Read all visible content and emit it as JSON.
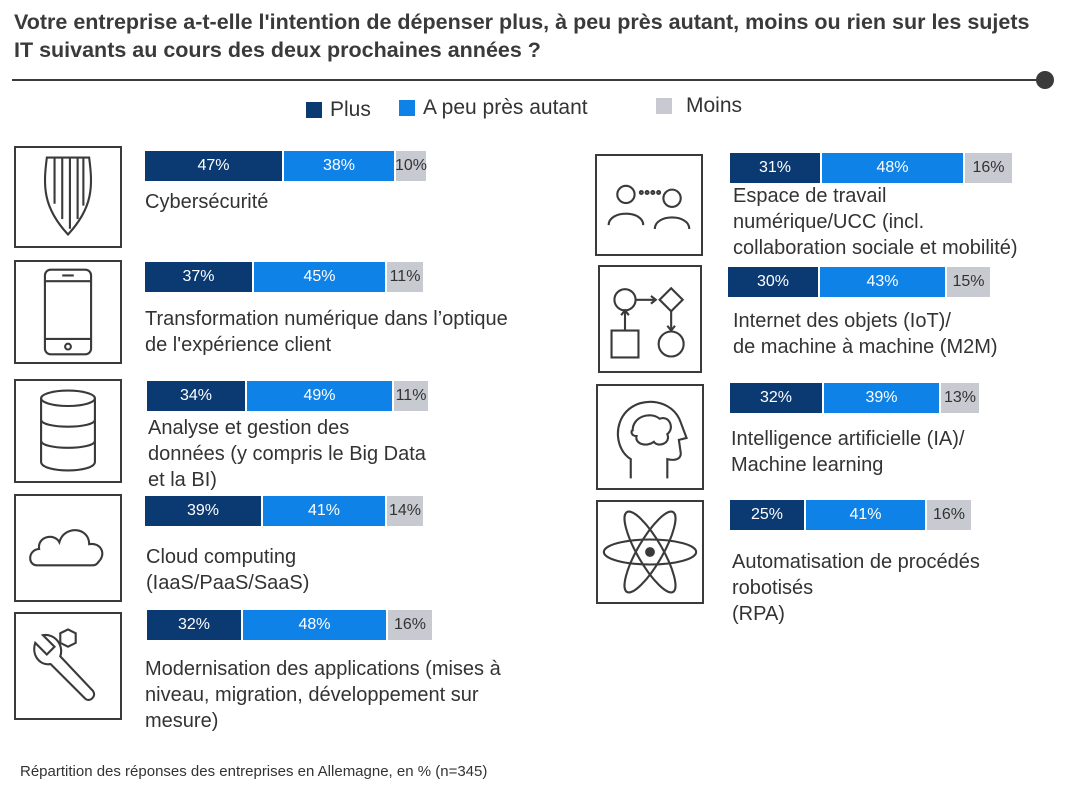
{
  "title": "Votre entreprise a-t-elle l'intention de dépenser plus, à peu près autant, moins ou rien sur les sujets IT suivants au cours des deux prochaines années ?",
  "footer": "Répartition des réponses des entreprises en Allemagne, en % (n=345)",
  "colors": {
    "plus": "#0b3a73",
    "autant": "#0f82e8",
    "moins": "#c7cbd1",
    "line": "#3a3a3a"
  },
  "legend": [
    {
      "label": "Plus",
      "color": "#0b3a73"
    },
    {
      "label": "A peu près autant",
      "color": "#0f82e8"
    },
    {
      "label": "Moins",
      "color": "#c7cbd1"
    }
  ],
  "chart_data": {
    "type": "bar",
    "orientation": "horizontal-stacked",
    "unit": "%",
    "series_names": [
      "Plus",
      "A peu près autant",
      "Moins"
    ],
    "items": [
      {
        "label": "Cybersécurité",
        "icon": "shield-icon",
        "values": [
          47,
          38,
          10
        ],
        "texts": [
          "47%",
          "38%",
          "10%"
        ]
      },
      {
        "label": "Transformation numérique dans l’optique\nde l'expérience client",
        "icon": "smartphone-icon",
        "values": [
          37,
          45,
          11
        ],
        "texts": [
          "37%",
          "45%",
          "11%"
        ]
      },
      {
        "label": "Analyse et gestion des\ndonnées (y compris le Big Data\net la BI)",
        "icon": "database-icon",
        "values": [
          34,
          49,
          11
        ],
        "texts": [
          "34%",
          "49%",
          "11%"
        ]
      },
      {
        "label": "Cloud computing\n(IaaS/PaaS/SaaS)",
        "icon": "cloud-icon",
        "values": [
          39,
          41,
          14
        ],
        "texts": [
          "39%",
          "41%",
          "14%"
        ]
      },
      {
        "label": "Modernisation des applications (mises à\nniveau, migration, développement sur\nmesure)",
        "icon": "wrench-icon",
        "values": [
          32,
          48,
          16
        ],
        "texts": [
          "32%",
          "48%",
          "16%"
        ]
      },
      {
        "label": "Espace de travail\nnumérique/UCC (incl.\ncollaboration sociale et mobilité)",
        "icon": "collaboration-icon",
        "values": [
          31,
          48,
          16
        ],
        "texts": [
          "31%",
          "48%",
          "16%"
        ]
      },
      {
        "label": "Internet des objets (IoT)/\nde machine à machine (M2M)",
        "icon": "flowchart-icon",
        "values": [
          30,
          43,
          15
        ],
        "texts": [
          "30%",
          "43%",
          "15%"
        ]
      },
      {
        "label": "Intelligence artificielle (IA)/\nMachine learning",
        "icon": "brain-head-icon",
        "values": [
          32,
          39,
          13
        ],
        "texts": [
          "32%",
          "39%",
          "13%"
        ]
      },
      {
        "label": "Automatisation de procédés\nrobotisés\n(RPA)",
        "icon": "atom-icon",
        "values": [
          25,
          41,
          16
        ],
        "texts": [
          "25%",
          "41%",
          "16%"
        ]
      }
    ]
  }
}
